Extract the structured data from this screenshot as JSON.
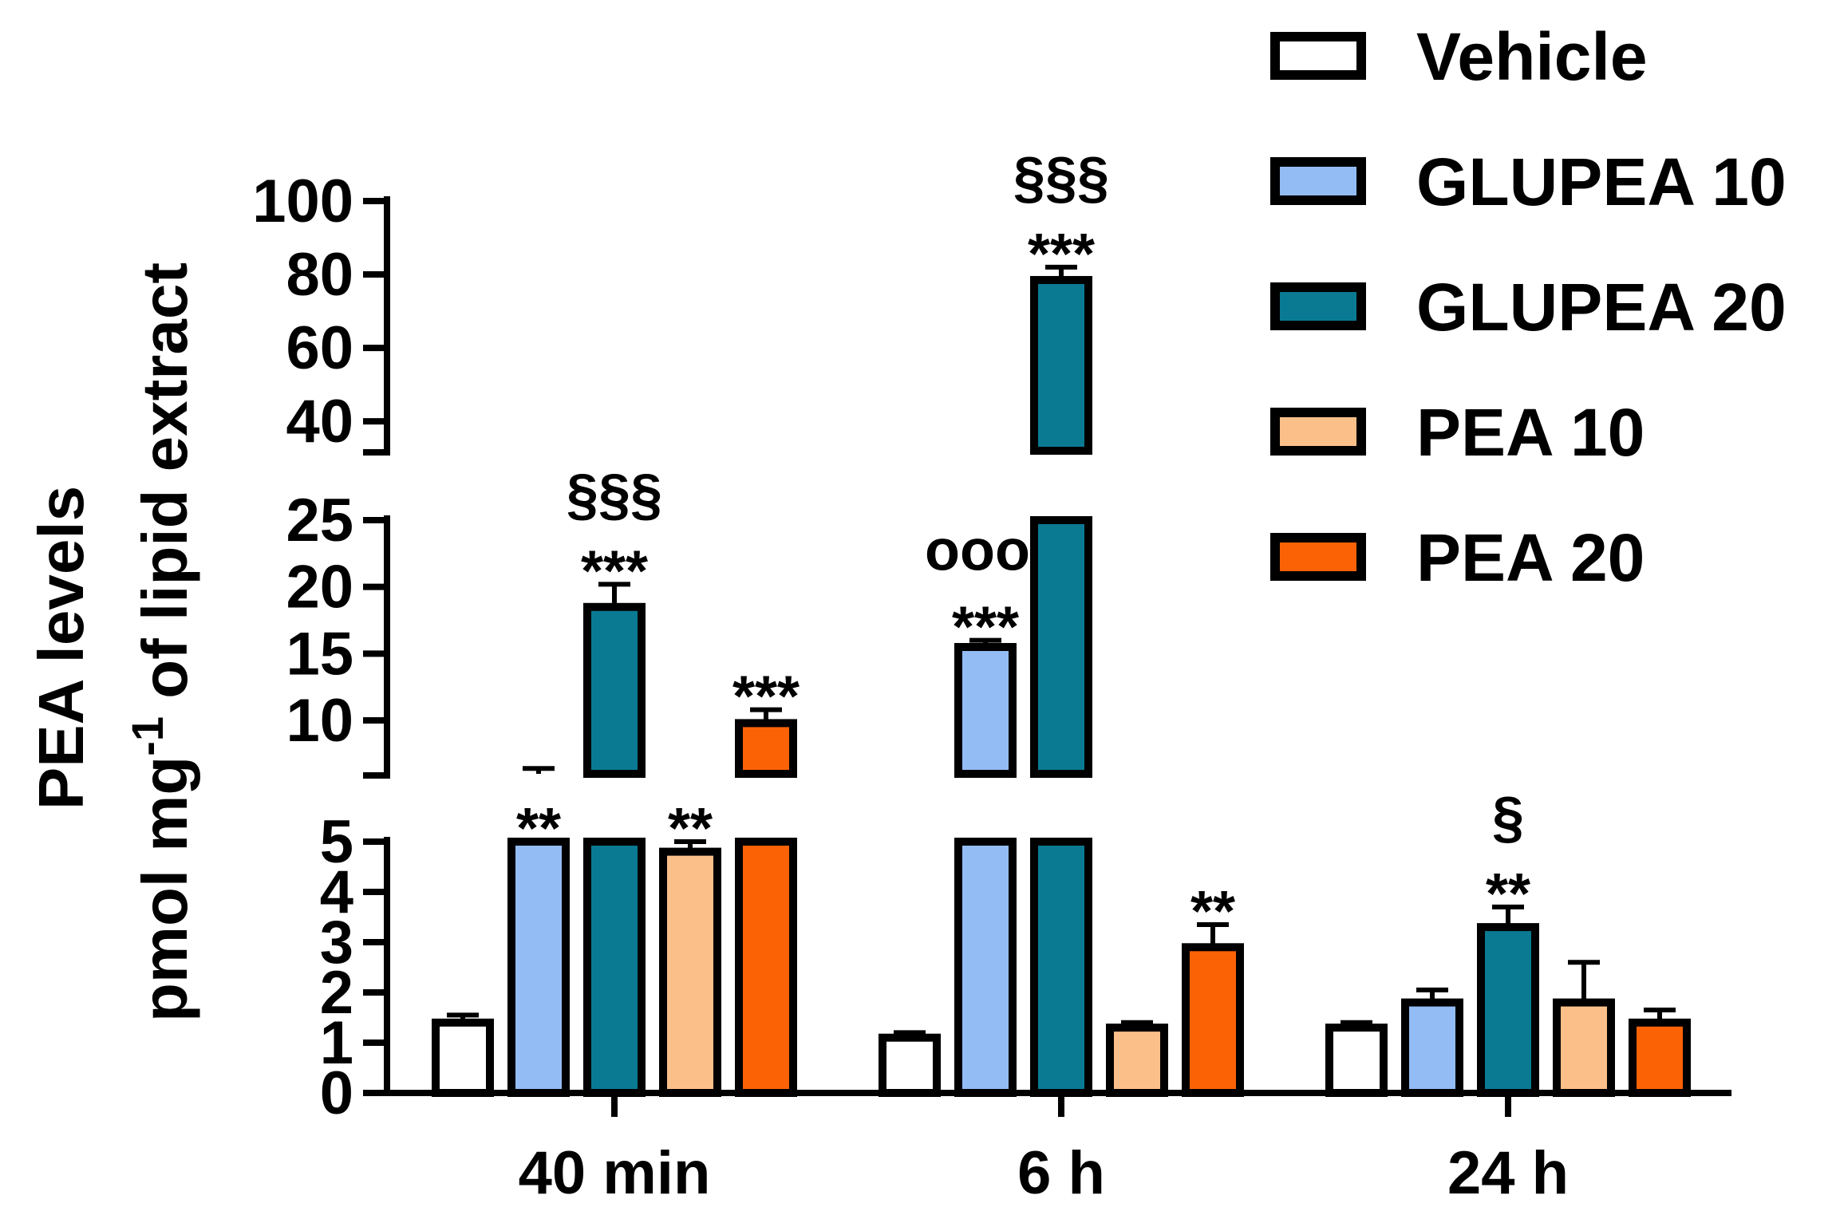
{
  "chart_data": {
    "type": "bar",
    "title": "",
    "ylabel_line1": "PEA levels",
    "ylabel_line2_prefix": "pmol mg",
    "ylabel_line2_sup": "-1",
    "ylabel_line2_suffix": " of lipid extract",
    "categories": [
      "40 min",
      "6 h",
      "24 h"
    ],
    "series": [
      {
        "name": "Vehicle",
        "color": "#ffffff",
        "values": [
          1.4,
          1.1,
          1.3
        ],
        "errors": [
          0.15,
          0.1,
          0.1
        ]
      },
      {
        "name": "GLUPEA 10",
        "color": "#93bcf4",
        "values": [
          6.0,
          15.5,
          1.8
        ],
        "errors": [
          0.4,
          0.5,
          0.25
        ]
      },
      {
        "name": "GLUPEA 20",
        "color": "#0a7a93",
        "values": [
          18.5,
          78.5,
          3.3
        ],
        "errors": [
          1.7,
          3.5,
          0.4
        ]
      },
      {
        "name": "PEA 10",
        "color": "#fbc08a",
        "values": [
          4.8,
          1.3,
          1.8
        ],
        "errors": [
          0.2,
          0.1,
          0.8
        ]
      },
      {
        "name": "PEA 20",
        "color": "#fb6206",
        "values": [
          9.8,
          2.9,
          1.4
        ],
        "errors": [
          1.0,
          0.45,
          0.25
        ]
      }
    ],
    "y_segments": [
      {
        "range": [
          0,
          5
        ],
        "ticks": [
          "0",
          "1",
          "2",
          "3",
          "4",
          "5"
        ]
      },
      {
        "range": [
          6,
          25
        ],
        "ticks": [
          "10",
          "15",
          "20",
          "25"
        ]
      },
      {
        "range": [
          32,
          100
        ],
        "ticks": [
          "40",
          "60",
          "80",
          "100"
        ]
      }
    ],
    "annotations": [
      {
        "category": 0,
        "series": 1,
        "lines": [
          "**"
        ]
      },
      {
        "category": 0,
        "series": 2,
        "lines": [
          "§§§",
          "***"
        ]
      },
      {
        "category": 0,
        "series": 3,
        "lines": [
          "**"
        ]
      },
      {
        "category": 0,
        "series": 4,
        "lines": [
          "***"
        ]
      },
      {
        "category": 1,
        "series": 1,
        "lines": [
          "ooo",
          "***"
        ]
      },
      {
        "category": 1,
        "series": 2,
        "lines": [
          "§§§",
          "***"
        ]
      },
      {
        "category": 1,
        "series": 4,
        "lines": [
          "**"
        ]
      },
      {
        "category": 2,
        "series": 2,
        "lines": [
          "§",
          "**"
        ]
      }
    ],
    "legend_position": "top-right"
  }
}
